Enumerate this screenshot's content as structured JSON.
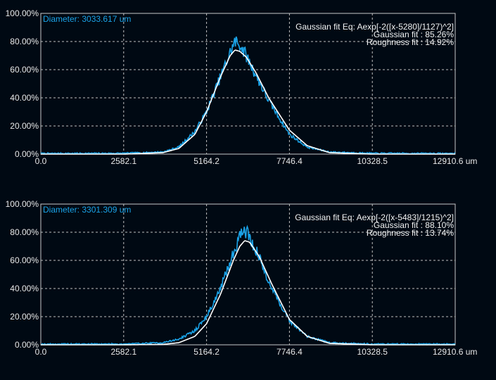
{
  "colors": {
    "background": "#000913",
    "frame": "#c8c8c8",
    "grid": "#bfbfbf",
    "measured": "#1aa3e8",
    "fit": "#ffffff",
    "diameter_text": "#1aa3e8"
  },
  "chart_data": [
    {
      "type": "line",
      "diameter_label": "Diameter: 3033.617 um",
      "annotations": [
        "Gaussian fit Eq: Aexp[-2([x-5280]/1127)^2]",
        "Gaussian fit : 85.26%",
        "Roughness fit : 14.92%"
      ],
      "x_ticks": [
        "0.0",
        "2582.1",
        "5164.2",
        "7746.4",
        "10328.5",
        "12910.6 um"
      ],
      "y_ticks": [
        "0.00%",
        "20.00%",
        "40.00%",
        "60.00%",
        "80.00%",
        "100.00%"
      ],
      "xlim": [
        0,
        12910.6
      ],
      "ylim": [
        0,
        100
      ],
      "grid": true,
      "series": [
        {
          "role": "measured",
          "noise_seed": 7,
          "x": [
            0,
            2582.1,
            3800,
            4300,
            4800,
            5164.2,
            5600,
            5900,
            6050,
            6200,
            6400,
            6700,
            7100,
            7746.4,
            8300,
            9000,
            10328.5,
            12910.6
          ],
          "y": [
            0.5,
            0.6,
            1.5,
            5,
            16,
            30,
            55,
            72,
            80,
            78,
            70,
            56,
            38,
            14,
            5,
            1.5,
            0.6,
            0.5
          ]
        },
        {
          "role": "fit",
          "x": [
            0,
            2582.1,
            3800,
            4300,
            4800,
            5164.2,
            5600,
            5900,
            6050,
            6200,
            6400,
            6700,
            7100,
            7746.4,
            8300,
            9000,
            10328.5,
            12910.6
          ],
          "y": [
            0,
            0,
            1,
            4,
            14,
            30,
            55,
            70,
            74,
            73,
            69,
            58,
            40,
            17,
            6,
            1,
            0,
            0
          ]
        }
      ]
    },
    {
      "type": "line",
      "diameter_label": "Diameter: 3301.309 um",
      "annotations": [
        "Gaussian fit Eq: Aexp[-2([x-5483]/1215)^2]",
        "Gaussian fit : 88.10%",
        "Roughness fit : 13.74%"
      ],
      "x_ticks": [
        "0.0",
        "2582.1",
        "5164.2",
        "7746.4",
        "10328.5",
        "12910.6 um"
      ],
      "y_ticks": [
        "0.00%",
        "20.00%",
        "40.00%",
        "60.00%",
        "80.00%",
        "100.00%"
      ],
      "xlim": [
        0,
        12910.6
      ],
      "ylim": [
        0,
        100
      ],
      "grid": true,
      "series": [
        {
          "role": "measured",
          "noise_seed": 19,
          "x": [
            0,
            2582.1,
            3800,
            4300,
            4800,
            5164.2,
            5600,
            6000,
            6200,
            6350,
            6500,
            6800,
            7200,
            7746.4,
            8300,
            9000,
            10328.5,
            12910.6
          ],
          "y": [
            0.5,
            0.6,
            1.5,
            4,
            10,
            20,
            40,
            65,
            78,
            82,
            77,
            62,
            40,
            17,
            6,
            1.5,
            0.6,
            0.5
          ]
        },
        {
          "role": "fit",
          "x": [
            0,
            2582.1,
            3800,
            4300,
            4800,
            5164.2,
            5600,
            6000,
            6200,
            6350,
            6500,
            6800,
            7200,
            7746.4,
            8300,
            9000,
            10328.5,
            12910.6
          ],
          "y": [
            0,
            0,
            0.3,
            1.5,
            6,
            15,
            36,
            60,
            70,
            74,
            73,
            63,
            43,
            18,
            6,
            1,
            0,
            0
          ]
        }
      ]
    }
  ]
}
